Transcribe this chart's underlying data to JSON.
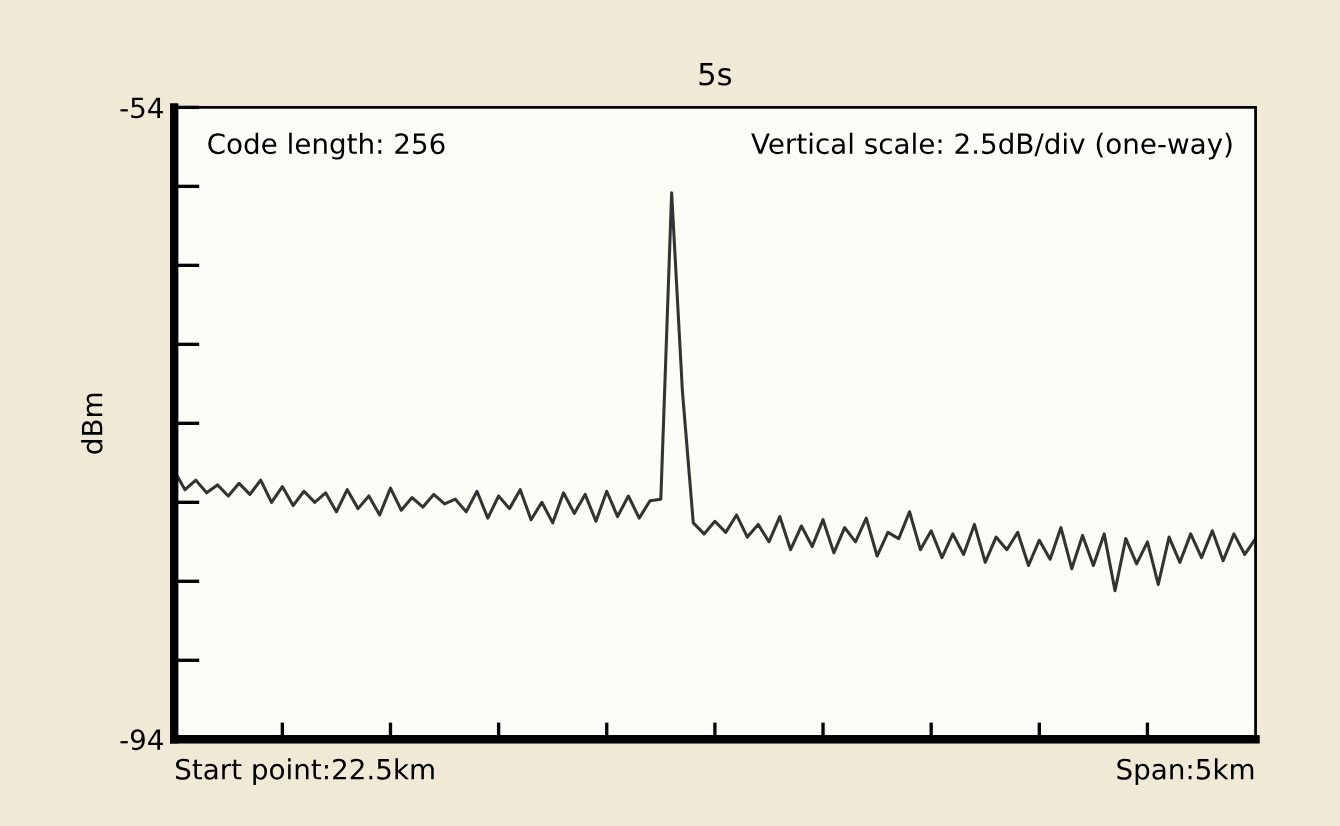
{
  "chart_data": {
    "type": "line",
    "title": "5s",
    "ylabel": "dBm",
    "annotations": [
      "Code length: 256",
      "Vertical scale: 2.5dB/div (one-way)",
      "Start point:22.5km",
      "Span:5km"
    ],
    "categories": [
      null,
      null,
      null,
      null,
      null,
      null,
      null,
      null,
      null,
      null,
      null,
      null,
      null,
      null,
      null,
      null,
      null,
      null,
      null,
      null,
      null,
      null,
      null,
      null,
      null,
      null,
      null,
      null,
      null,
      null,
      null,
      null,
      null,
      null,
      null,
      null,
      null,
      null,
      null,
      null,
      null,
      null,
      null,
      null,
      null,
      null,
      null,
      null,
      null,
      null,
      null,
      null,
      null,
      null,
      null,
      null,
      null,
      null,
      null,
      null,
      null,
      null,
      null,
      null,
      null,
      null,
      null,
      null,
      null,
      null,
      null,
      null,
      null,
      null,
      null,
      null,
      null,
      null,
      null,
      null,
      null,
      null,
      null,
      null,
      null,
      null,
      null,
      null,
      null,
      null,
      null,
      null,
      null,
      null,
      null,
      null,
      null,
      null,
      null,
      null,
      null
    ],
    "ylim": [
      -94,
      -54
    ],
    "yticks": [
      -94,
      {
        "value": -89,
        "label": null
      },
      {
        "value": -84,
        "label": null
      },
      {
        "value": -79,
        "label": null
      },
      {
        "value": -74,
        "label": null
      },
      {
        "value": -69,
        "label": null
      },
      {
        "value": -64,
        "label": null
      },
      {
        "value": -59,
        "label": null
      },
      -54
    ],
    "grid": false,
    "marker": "none",
    "line_style": "solid",
    "tick_labels": "y",
    "series": [
      {
        "color": "#333333",
        "values": [
          -77.0,
          -78.2,
          -77.6,
          -78.4,
          -77.9,
          -78.6,
          -77.8,
          -78.5,
          -77.6,
          -79.0,
          -78.0,
          -79.2,
          -78.3,
          -79.0,
          -78.4,
          -79.6,
          -78.2,
          -79.4,
          -78.6,
          -79.8,
          -78.1,
          -79.5,
          -78.7,
          -79.3,
          -78.5,
          -79.1,
          -78.8,
          -79.6,
          -78.3,
          -80.0,
          -78.6,
          -79.4,
          -78.2,
          -80.1,
          -79.0,
          -80.3,
          -78.4,
          -79.7,
          -78.5,
          -80.2,
          -78.3,
          -79.9,
          -78.6,
          -80.0,
          -78.9,
          -78.8,
          -59.4,
          -72.0,
          -80.3,
          -81.0,
          -80.2,
          -80.9,
          -79.8,
          -81.2,
          -80.4,
          -81.5,
          -79.9,
          -82.0,
          -80.5,
          -81.8,
          -80.1,
          -82.2,
          -80.6,
          -81.5,
          -80.0,
          -82.4,
          -80.9,
          -81.3,
          -79.6,
          -82.0,
          -80.8,
          -82.5,
          -81.0,
          -82.3,
          -80.4,
          -82.8,
          -81.2,
          -82.0,
          -80.9,
          -83.0,
          -81.4,
          -82.6,
          -80.6,
          -83.2,
          -81.1,
          -83.0,
          -81.0,
          -84.6,
          -81.3,
          -82.9,
          -81.5,
          -84.2,
          -81.2,
          -82.8,
          -81.0,
          -82.5,
          -80.8,
          -82.7,
          -81.0,
          -82.3,
          -81.3
        ]
      }
    ]
  }
}
